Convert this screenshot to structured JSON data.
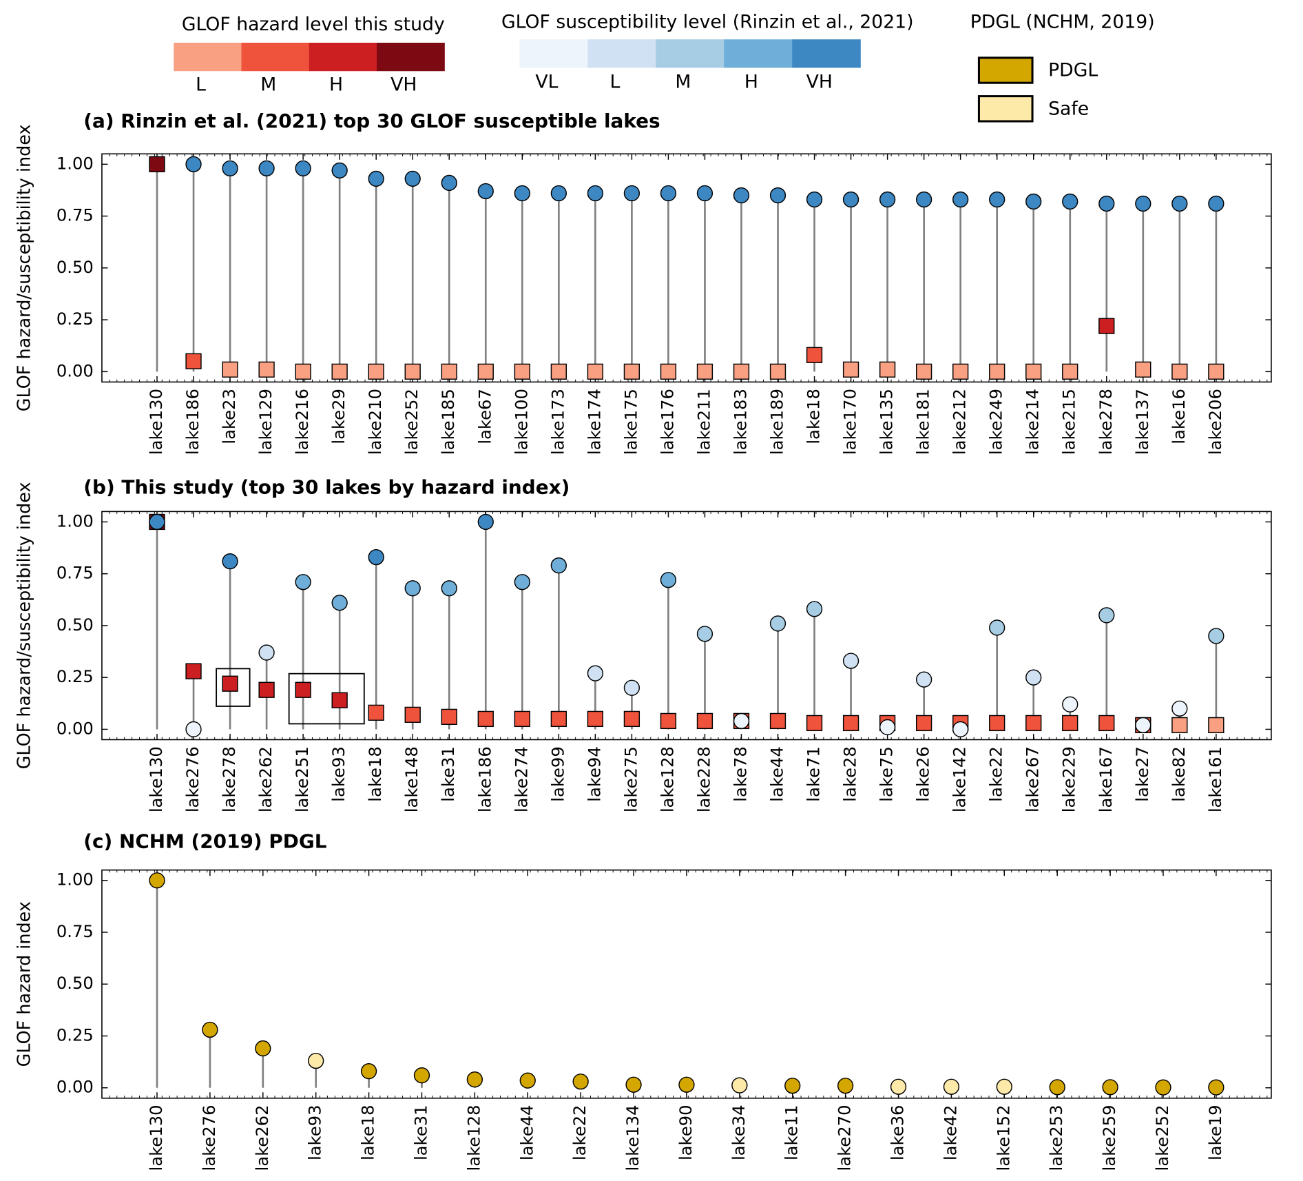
{
  "legends": [
    {
      "title": "GLOF hazard level this study",
      "levels": [
        {
          "label": "L",
          "color": "#f9a082"
        },
        {
          "label": "M",
          "color": "#f0533b"
        },
        {
          "label": "H",
          "color": "#cc1f22"
        },
        {
          "label": "VH",
          "color": "#7d0a12"
        }
      ]
    },
    {
      "title": "GLOF susceptibility level (Rinzin et al., 2021)",
      "levels": [
        {
          "label": "VL",
          "color": "#eef4fb"
        },
        {
          "label": "L",
          "color": "#cfe1f2"
        },
        {
          "label": "M",
          "color": "#a7cde4"
        },
        {
          "label": "H",
          "color": "#6eaed8"
        },
        {
          "label": "VH",
          "color": "#3d87c2"
        }
      ]
    },
    {
      "title": "PDGL (NCHM, 2019)",
      "levels": [
        {
          "label": "PDGL",
          "color": "#d4a600"
        },
        {
          "label": "Safe",
          "color": "#fde9a8"
        }
      ]
    }
  ],
  "chart_data": [
    {
      "type": "lollipop",
      "title": "(a) Rinzin et al. (2021) top 30 GLOF susceptible lakes",
      "y_label": "GLOF hazard/susceptibility index",
      "categories": [
        "lake130",
        "lake186",
        "lake23",
        "lake129",
        "lake216",
        "lake29",
        "lake210",
        "lake252",
        "lake185",
        "lake67",
        "lake100",
        "lake173",
        "lake174",
        "lake175",
        "lake176",
        "lake211",
        "lake183",
        "lake189",
        "lake18",
        "lake170",
        "lake135",
        "lake181",
        "lake212",
        "lake249",
        "lake214",
        "lake215",
        "lake278",
        "lake137",
        "lake16",
        "lake206"
      ],
      "series": [
        {
          "marker": "circle",
          "values": [
            1.0,
            1.0,
            0.98,
            0.98,
            0.98,
            0.97,
            0.93,
            0.93,
            0.91,
            0.87,
            0.86,
            0.86,
            0.86,
            0.86,
            0.86,
            0.86,
            0.85,
            0.85,
            0.83,
            0.83,
            0.83,
            0.83,
            0.83,
            0.83,
            0.82,
            0.82,
            0.81,
            0.81,
            0.81,
            0.81
          ],
          "colors": [
            "#3d87c2",
            "#3d87c2",
            "#3d87c2",
            "#3d87c2",
            "#3d87c2",
            "#3d87c2",
            "#3d87c2",
            "#3d87c2",
            "#3d87c2",
            "#3d87c2",
            "#3d87c2",
            "#3d87c2",
            "#3d87c2",
            "#3d87c2",
            "#3d87c2",
            "#3d87c2",
            "#3d87c2",
            "#3d87c2",
            "#3d87c2",
            "#3d87c2",
            "#3d87c2",
            "#3d87c2",
            "#3d87c2",
            "#3d87c2",
            "#3d87c2",
            "#3d87c2",
            "#3d87c2",
            "#3d87c2",
            "#3d87c2",
            "#3d87c2"
          ]
        },
        {
          "marker": "square",
          "values": [
            1.0,
            0.05,
            0.01,
            0.01,
            0,
            0,
            0,
            0,
            0,
            0,
            0,
            0,
            0,
            0,
            0,
            0,
            0,
            0,
            0.08,
            0.01,
            0.01,
            0,
            0,
            0,
            0,
            0,
            0.22,
            0.01,
            0,
            0
          ],
          "colors": [
            "#7d0a12",
            "#f0533b",
            "#f9a082",
            "#f9a082",
            "#f9a082",
            "#f9a082",
            "#f9a082",
            "#f9a082",
            "#f9a082",
            "#f9a082",
            "#f9a082",
            "#f9a082",
            "#f9a082",
            "#f9a082",
            "#f9a082",
            "#f9a082",
            "#f9a082",
            "#f9a082",
            "#f0533b",
            "#f9a082",
            "#f9a082",
            "#f9a082",
            "#f9a082",
            "#f9a082",
            "#f9a082",
            "#f9a082",
            "#cc1f22",
            "#f9a082",
            "#f9a082",
            "#f9a082"
          ]
        }
      ],
      "ylim": [
        -0.05,
        1.05
      ],
      "yticks": [
        {
          "value": 0,
          "label": "0.00"
        },
        {
          "value": 0.25,
          "label": "0.25"
        },
        {
          "value": 0.5,
          "label": "0.50"
        },
        {
          "value": 0.75,
          "label": "0.75"
        },
        {
          "value": 1,
          "label": "1.00"
        }
      ]
    },
    {
      "type": "lollipop",
      "title": "(b) This study (top 30 lakes by hazard index)",
      "y_label": "GLOF hazard/susceptibility index",
      "categories": [
        "lake130",
        "lake276",
        "lake278",
        "lake262",
        "lake251",
        "lake93",
        "lake18",
        "lake148",
        "lake31",
        "lake186",
        "lake274",
        "lake99",
        "lake94",
        "lake275",
        "lake128",
        "lake228",
        "lake78",
        "lake44",
        "lake71",
        "lake28",
        "lake75",
        "lake26",
        "lake142",
        "lake22",
        "lake267",
        "lake229",
        "lake167",
        "lake27",
        "lake82",
        "lake161"
      ],
      "series": [
        {
          "marker": "square",
          "values": [
            1.0,
            0.28,
            0.22,
            0.19,
            0.19,
            0.14,
            0.08,
            0.07,
            0.06,
            0.05,
            0.05,
            0.05,
            0.05,
            0.05,
            0.04,
            0.04,
            0.04,
            0.04,
            0.03,
            0.03,
            0.03,
            0.03,
            0.03,
            0.03,
            0.03,
            0.03,
            0.03,
            0.02,
            0.02,
            0.02
          ],
          "colors": [
            "#7d0a12",
            "#cc1f22",
            "#cc1f22",
            "#cc1f22",
            "#cc1f22",
            "#cc1f22",
            "#f0533b",
            "#f0533b",
            "#f0533b",
            "#f0533b",
            "#f0533b",
            "#f0533b",
            "#f0533b",
            "#f0533b",
            "#f0533b",
            "#f0533b",
            "#f0533b",
            "#f0533b",
            "#f0533b",
            "#f0533b",
            "#f0533b",
            "#f0533b",
            "#f0533b",
            "#f0533b",
            "#f0533b",
            "#f0533b",
            "#f0533b",
            "#f0533b",
            "#f9a082",
            "#f9a082"
          ]
        },
        {
          "marker": "circle",
          "values": [
            1.0,
            0.0,
            0.81,
            0.37,
            0.71,
            0.61,
            0.83,
            0.68,
            0.68,
            1.0,
            0.71,
            0.79,
            0.27,
            0.2,
            0.72,
            0.46,
            0.04,
            0.51,
            0.58,
            0.33,
            0.01,
            0.24,
            0.0,
            0.49,
            0.25,
            0.12,
            0.55,
            0.02,
            0.1,
            0.45
          ],
          "colors": [
            "#3d87c2",
            "#eef4fb",
            "#3d87c2",
            "#cfe1f2",
            "#6eaed8",
            "#6eaed8",
            "#3d87c2",
            "#6eaed8",
            "#6eaed8",
            "#3d87c2",
            "#6eaed8",
            "#6eaed8",
            "#cfe1f2",
            "#cfe1f2",
            "#6eaed8",
            "#a7cde4",
            "#eef4fb",
            "#a7cde4",
            "#a7cde4",
            "#cfe1f2",
            "#eef4fb",
            "#cfe1f2",
            "#eef4fb",
            "#a7cde4",
            "#cfe1f2",
            "#eef4fb",
            "#a7cde4",
            "#eef4fb",
            "#eef4fb",
            "#a7cde4"
          ]
        }
      ],
      "ylim": [
        -0.05,
        1.05
      ],
      "yticks": [
        {
          "value": 0,
          "label": "0.00"
        },
        {
          "value": 0.25,
          "label": "0.25"
        },
        {
          "value": 0.5,
          "label": "0.50"
        },
        {
          "value": 0.75,
          "label": "0.75"
        },
        {
          "value": 1,
          "label": "1.00"
        }
      ]
    },
    {
      "type": "lollipop",
      "title": "(c) NCHM (2019) PDGL",
      "y_label": "GLOF hazard index",
      "categories": [
        "lake130",
        "lake276",
        "lake262",
        "lake93",
        "lake18",
        "lake31",
        "lake128",
        "lake44",
        "lake22",
        "lake134",
        "lake90",
        "lake34",
        "lake11",
        "lake270",
        "lake36",
        "lake42",
        "lake152",
        "lake253",
        "lake259",
        "lake252",
        "lake19"
      ],
      "series": [
        {
          "marker": "circle",
          "values": [
            1.0,
            0.28,
            0.19,
            0.13,
            0.08,
            0.06,
            0.04,
            0.035,
            0.03,
            0.015,
            0.015,
            0.012,
            0.01,
            0.01,
            0.005,
            0.005,
            0.005,
            0.003,
            0.003,
            0.002,
            0.002
          ],
          "colors": [
            "#d4a600",
            "#d4a600",
            "#d4a600",
            "#fde9a8",
            "#d4a600",
            "#d4a600",
            "#d4a600",
            "#d4a600",
            "#d4a600",
            "#d4a600",
            "#d4a600",
            "#fde9a8",
            "#d4a600",
            "#d4a600",
            "#fde9a8",
            "#fde9a8",
            "#fde9a8",
            "#d4a600",
            "#d4a600",
            "#d4a600",
            "#d4a600"
          ]
        }
      ],
      "ylim": [
        -0.05,
        1.05
      ],
      "yticks": [
        {
          "value": 0,
          "label": "0.00"
        },
        {
          "value": 0.25,
          "label": "0.25"
        },
        {
          "value": 0.5,
          "label": "0.50"
        },
        {
          "value": 0.75,
          "label": "0.75"
        },
        {
          "value": 1,
          "label": "1.00"
        }
      ]
    }
  ]
}
